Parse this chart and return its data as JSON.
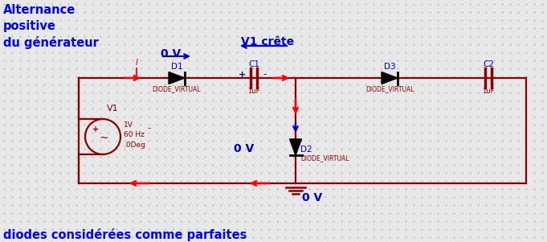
{
  "bg_color": "#e8e8e8",
  "dot_color": "#b0b8c0",
  "wire_color": "#8B0000",
  "blue_color": "#0000CC",
  "text_blue": "#0000FF",
  "title_text": "Alternance\npositive\ndu générateur",
  "bottom_text": "diodes considérées comme parfaites",
  "v1_label": "V1",
  "v1_params": "1V\n60 Hz\n.0Deg",
  "d1_label": "D1",
  "d1_sublabel": "DIODE_VIRTUAL",
  "d2_label": "D2",
  "d2_sublabel": "DIODE_VIRTUAL",
  "d3_label": "D3",
  "d3_sublabel": "DIODE_VIRTUAL",
  "c1_label": "C1",
  "c1_sublabel": "1uF",
  "c2_label": "C2",
  "c2_sublabel": "1uF",
  "ov_top": "0 V",
  "ov_mid": "0 V",
  "ov_bot": "0 V",
  "v1_crete": "V1 crête",
  "i_label": "I",
  "minus_label": "-"
}
